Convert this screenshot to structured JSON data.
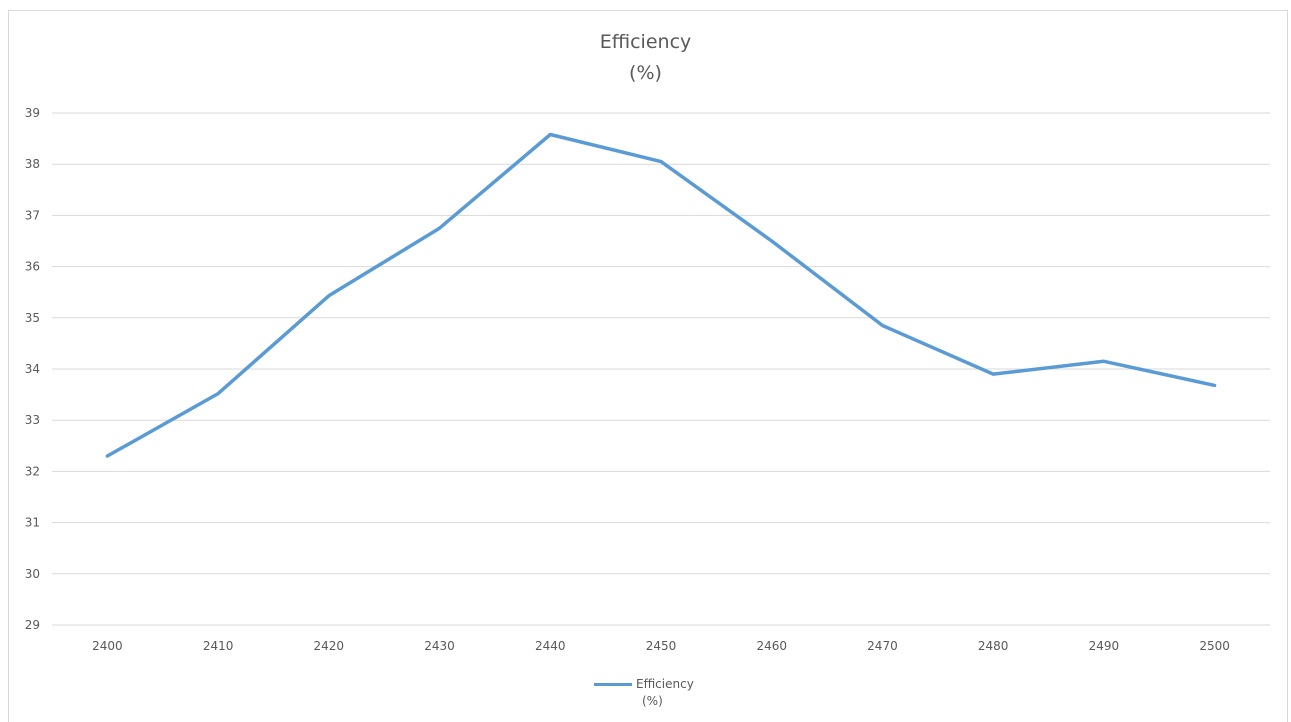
{
  "chart_data": {
    "type": "line",
    "title_line1": "Efficiency",
    "title_line2": "(%)",
    "x": [
      2400,
      2410,
      2420,
      2430,
      2440,
      2450,
      2460,
      2470,
      2480,
      2490,
      2500
    ],
    "series": [
      {
        "name_line1": "Efficiency",
        "name_line2": "(%)",
        "values": [
          32.3,
          33.52,
          35.43,
          36.75,
          38.58,
          38.05,
          36.5,
          34.85,
          33.9,
          34.15,
          33.68
        ]
      }
    ],
    "yticks": [
      29,
      30,
      31,
      32,
      33,
      34,
      35,
      36,
      37,
      38,
      39
    ],
    "ylim": [
      29,
      39
    ],
    "grid": true,
    "legend": "bottom",
    "line_color": "#5b9bd5",
    "grid_color": "#d9d9d9",
    "text_color": "#595959"
  }
}
